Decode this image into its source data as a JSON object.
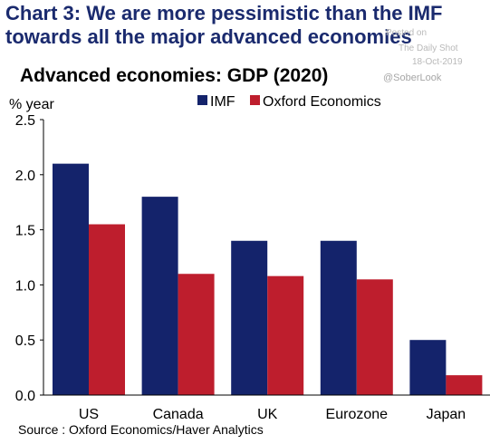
{
  "header": {
    "title_line1": "Chart 3: We are more pessimistic than the IMF",
    "title_line2": "towards all the major advanced economies"
  },
  "watermark": {
    "posted_on": "Posted on",
    "publication": "The Daily Shot",
    "date": "18-Oct-2019",
    "handle": "@SoberLook"
  },
  "source": "Source : Oxford Economics/Haver Analytics",
  "colors": {
    "imf": "#14236b",
    "oxford": "#be1e2d",
    "title": "#1a2a6e"
  },
  "chart_data": {
    "type": "bar",
    "title": "Advanced economies: GDP (2020)",
    "ylabel": "% year",
    "xlabel": "",
    "ylim": [
      0,
      2.5
    ],
    "yticks": [
      "0.0",
      "0.5",
      "1.0",
      "1.5",
      "2.0",
      "2.5"
    ],
    "categories": [
      "US",
      "Canada",
      "UK",
      "Eurozone",
      "Japan"
    ],
    "series": [
      {
        "name": "IMF",
        "values": [
          2.1,
          1.8,
          1.4,
          1.4,
          0.5
        ]
      },
      {
        "name": "Oxford Economics",
        "values": [
          1.55,
          1.1,
          1.08,
          1.05,
          0.18
        ]
      }
    ],
    "legend": "top",
    "grid": false
  }
}
